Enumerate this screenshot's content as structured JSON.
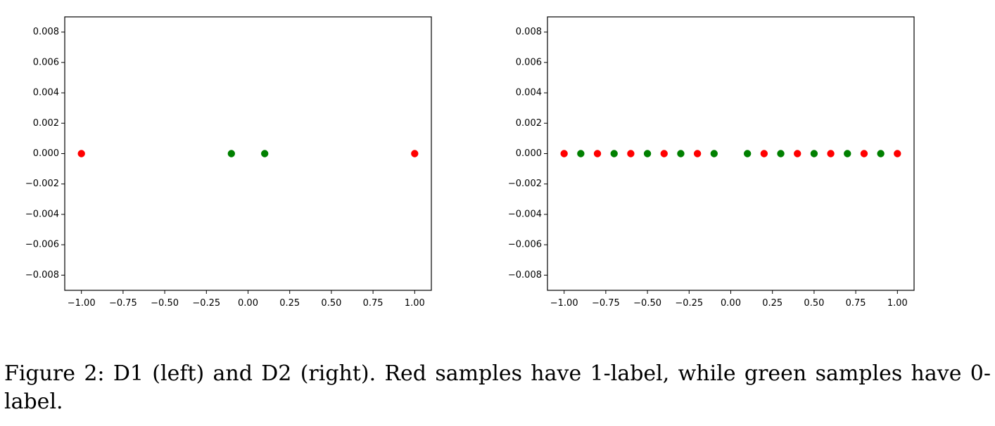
{
  "caption": "Figure 2: D1 (left) and D2 (right). Red samples have 1-label, while green samples have 0-label.",
  "colors": {
    "label_1": "#ff0000",
    "label_0": "#008000",
    "axes": "#000000",
    "background": "#ffffff"
  },
  "chart_data": [
    {
      "type": "scatter",
      "title": "",
      "xlabel": "",
      "ylabel": "",
      "xlim": [
        -1.1,
        1.1
      ],
      "ylim": [
        -0.009,
        0.009
      ],
      "grid": false,
      "xticks": [
        -1.0,
        -0.75,
        -0.5,
        -0.25,
        0.0,
        0.25,
        0.5,
        0.75,
        1.0
      ],
      "xtick_labels": [
        "−1.00",
        "−0.75",
        "−0.50",
        "−0.25",
        "0.00",
        "0.25",
        "0.50",
        "0.75",
        "1.00"
      ],
      "yticks": [
        0.008,
        0.006,
        0.004,
        0.002,
        0.0,
        -0.002,
        -0.004,
        -0.006,
        -0.008
      ],
      "ytick_labels": [
        "0.008",
        "0.006",
        "0.004",
        "0.002",
        "0.000",
        "−0.002",
        "−0.004",
        "−0.006",
        "−0.008"
      ],
      "series": [
        {
          "color": "#ff0000",
          "x": [
            -1.0,
            1.0
          ],
          "y": [
            0,
            0
          ]
        },
        {
          "color": "#008000",
          "x": [
            -0.1,
            0.1
          ],
          "y": [
            0,
            0
          ]
        }
      ]
    },
    {
      "type": "scatter",
      "title": "",
      "xlabel": "",
      "ylabel": "",
      "xlim": [
        -1.1,
        1.1
      ],
      "ylim": [
        -0.009,
        0.009
      ],
      "grid": false,
      "xticks": [
        -1.0,
        -0.75,
        -0.5,
        -0.25,
        0.0,
        0.25,
        0.5,
        0.75,
        1.0
      ],
      "xtick_labels": [
        "−1.00",
        "−0.75",
        "−0.50",
        "−0.25",
        "0.00",
        "0.25",
        "0.50",
        "0.75",
        "1.00"
      ],
      "yticks": [
        0.008,
        0.006,
        0.004,
        0.002,
        0.0,
        -0.002,
        -0.004,
        -0.006,
        -0.008
      ],
      "ytick_labels": [
        "0.008",
        "0.006",
        "0.004",
        "0.002",
        "0.000",
        "−0.002",
        "−0.004",
        "−0.006",
        "−0.008"
      ],
      "series": [
        {
          "color": "#ff0000",
          "x": [
            -1.0,
            -0.8,
            -0.6,
            -0.4,
            -0.2,
            0.2,
            0.4,
            0.6,
            0.8,
            1.0
          ],
          "y": [
            0,
            0,
            0,
            0,
            0,
            0,
            0,
            0,
            0,
            0
          ]
        },
        {
          "color": "#008000",
          "x": [
            -0.9,
            -0.7,
            -0.5,
            -0.3,
            -0.1,
            0.1,
            0.3,
            0.5,
            0.7,
            0.9
          ],
          "y": [
            0,
            0,
            0,
            0,
            0,
            0,
            0,
            0,
            0,
            0
          ]
        }
      ]
    }
  ]
}
